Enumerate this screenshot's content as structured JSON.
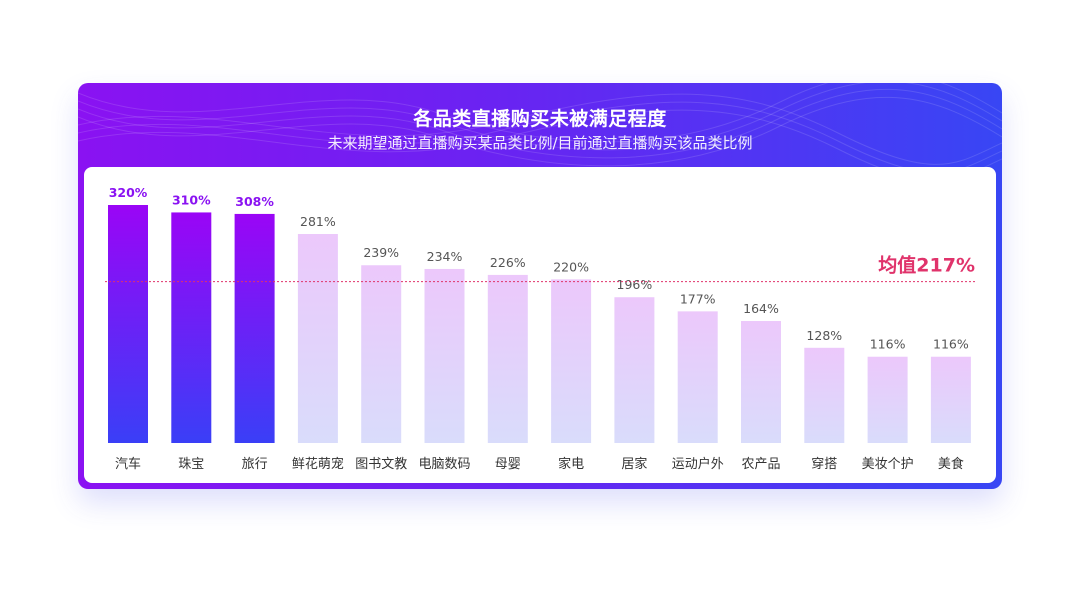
{
  "header": {
    "title": "各品类直播购买未被满足程度",
    "subtitle": "未来期望通过直播购买某品类比例/目前通过直播购买该品类比例"
  },
  "colors": {
    "highlight_top": "#9a05f6",
    "highlight_bottom": "#3a3ff7",
    "normal_top": "#ecc8fb",
    "normal_bottom": "#d9dcfb",
    "highlight_label": "#8a12f2",
    "normal_label": "#555555",
    "average_line": "#e0336b"
  },
  "chart_data": {
    "type": "bar",
    "title": "各品类直播购买未被满足程度",
    "subtitle": "未来期望通过直播购买某品类比例/目前通过直播购买该品类比例",
    "categories": [
      "汽车",
      "珠宝",
      "旅行",
      "鲜花萌宠",
      "图书文教",
      "电脑数码",
      "母婴",
      "家电",
      "居家",
      "运动户外",
      "农产品",
      "穿搭",
      "美妆个护",
      "美食"
    ],
    "values": [
      320,
      310,
      308,
      281,
      239,
      234,
      226,
      220,
      196,
      177,
      164,
      128,
      116,
      116
    ],
    "value_labels": [
      "320%",
      "310%",
      "308%",
      "281%",
      "239%",
      "234%",
      "226%",
      "220%",
      "196%",
      "177%",
      "164%",
      "128%",
      "116%",
      "116%"
    ],
    "highlighted": [
      true,
      true,
      true,
      false,
      false,
      false,
      false,
      false,
      false,
      false,
      false,
      false,
      false,
      false
    ],
    "unit": "%",
    "average": {
      "value": 217,
      "label": "均值217%"
    },
    "ylim": [
      0,
      320
    ],
    "grid": false,
    "legend": "none"
  }
}
